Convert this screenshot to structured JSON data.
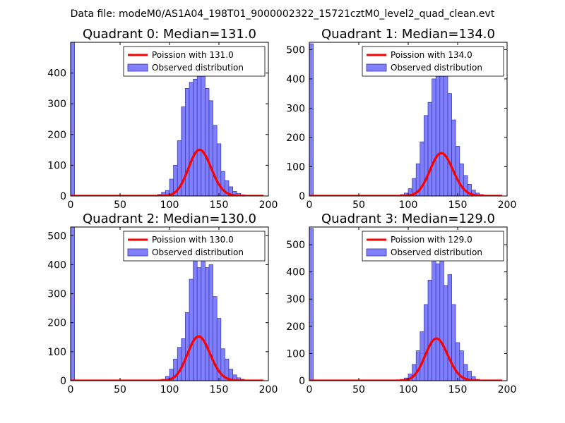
{
  "figure": {
    "suptitle": "Data file: modeM0/AS1A04_198T01_9000002322_15721cztM0_level2_quad_clean.evt"
  },
  "colors": {
    "bar_fill": "#8080ff",
    "bar_edge": "#3333aa",
    "line": "#ff0000",
    "line_glow": "#f08080"
  },
  "chart_data": [
    {
      "type": "bar",
      "title": "Quadrant 0: Median=131.0",
      "median": 131.0,
      "xlim": [
        0,
        200
      ],
      "ylim": [
        0,
        500
      ],
      "xticks": [
        0,
        50,
        100,
        150,
        200
      ],
      "yticks": [
        0,
        100,
        200,
        300,
        400
      ],
      "bin_width": 4,
      "bin_starts": [
        0,
        88,
        92,
        96,
        100,
        104,
        108,
        112,
        116,
        120,
        124,
        128,
        132,
        136,
        140,
        144,
        148,
        152,
        156,
        160,
        164,
        168,
        172,
        176,
        180,
        184,
        188
      ],
      "counts": [
        500,
        5,
        12,
        18,
        55,
        100,
        180,
        290,
        350,
        370,
        380,
        410,
        390,
        350,
        310,
        230,
        170,
        80,
        50,
        30,
        15,
        8,
        4,
        2,
        1,
        1,
        0
      ],
      "legend": [
        "Poission with 131.0",
        "Observed distribution"
      ]
    },
    {
      "type": "bar",
      "title": "Quadrant 1: Median=134.0",
      "median": 134.0,
      "xlim": [
        0,
        200
      ],
      "ylim": [
        0,
        525
      ],
      "xticks": [
        0,
        50,
        100,
        150,
        200
      ],
      "yticks": [
        0,
        100,
        200,
        300,
        400,
        500
      ],
      "bin_width": 4,
      "bin_starts": [
        0,
        92,
        96,
        100,
        104,
        108,
        112,
        116,
        120,
        124,
        128,
        132,
        136,
        140,
        144,
        148,
        152,
        156,
        160,
        164,
        168,
        172,
        176,
        180,
        184
      ],
      "counts": [
        520,
        5,
        10,
        25,
        60,
        110,
        185,
        275,
        320,
        400,
        430,
        430,
        440,
        350,
        260,
        170,
        110,
        70,
        40,
        20,
        10,
        5,
        2,
        1,
        0
      ],
      "legend": [
        "Poission with 134.0",
        "Observed distribution"
      ]
    },
    {
      "type": "bar",
      "title": "Quadrant 2: Median=130.0",
      "median": 130.0,
      "xlim": [
        0,
        200
      ],
      "ylim": [
        0,
        530
      ],
      "xticks": [
        0,
        50,
        100,
        150,
        200
      ],
      "yticks": [
        0,
        100,
        200,
        300,
        400,
        500
      ],
      "bin_width": 4,
      "bin_starts": [
        0,
        92,
        96,
        100,
        104,
        108,
        112,
        116,
        120,
        124,
        128,
        132,
        136,
        140,
        144,
        148,
        152,
        156,
        160,
        164,
        168,
        172,
        176
      ],
      "counts": [
        530,
        5,
        15,
        40,
        75,
        115,
        145,
        235,
        350,
        440,
        390,
        470,
        390,
        400,
        290,
        215,
        110,
        75,
        40,
        20,
        10,
        5,
        1
      ],
      "legend": [
        "Poission with 130.0",
        "Observed distribution"
      ]
    },
    {
      "type": "bar",
      "title": "Quadrant 3: Median=129.0",
      "median": 129.0,
      "xlim": [
        0,
        200
      ],
      "ylim": [
        0,
        565
      ],
      "xticks": [
        0,
        50,
        100,
        150,
        200
      ],
      "yticks": [
        0,
        100,
        200,
        300,
        400,
        500
      ],
      "bin_width": 4,
      "bin_starts": [
        0,
        92,
        96,
        100,
        104,
        108,
        112,
        116,
        120,
        124,
        128,
        132,
        136,
        140,
        144,
        148,
        152,
        156,
        160,
        164,
        168,
        172
      ],
      "counts": [
        560,
        5,
        10,
        25,
        60,
        110,
        180,
        280,
        370,
        490,
        430,
        510,
        350,
        390,
        280,
        140,
        110,
        60,
        35,
        15,
        5,
        2
      ],
      "legend": [
        "Poission with 129.0",
        "Observed distribution"
      ]
    }
  ]
}
